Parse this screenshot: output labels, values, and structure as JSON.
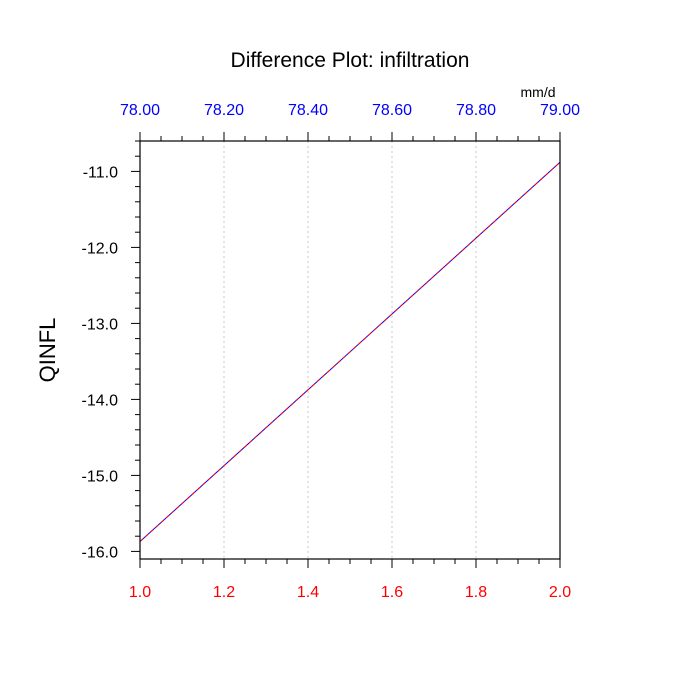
{
  "chart_data": {
    "type": "line",
    "title": "Difference Plot: infiltration",
    "ylabel": "QINFL",
    "top_axis_units": "mm/d",
    "xlim": [
      1.0,
      2.0
    ],
    "ylim": [
      -16.1,
      -10.6
    ],
    "top_xlim": [
      78.0,
      79.0
    ],
    "bottom_ticks": [
      "1.0",
      "1.2",
      "1.4",
      "1.6",
      "1.8",
      "2.0"
    ],
    "bottom_tick_values": [
      1.0,
      1.2,
      1.4,
      1.6,
      1.8,
      2.0
    ],
    "top_ticks": [
      "78.00",
      "78.20",
      "78.40",
      "78.60",
      "78.80",
      "79.00"
    ],
    "top_tick_values": [
      78.0,
      78.2,
      78.4,
      78.6,
      78.8,
      79.0
    ],
    "y_ticks": [
      "-11.0",
      "-12.0",
      "-13.0",
      "-14.0",
      "-15.0",
      "-16.0"
    ],
    "y_tick_values": [
      -11.0,
      -12.0,
      -13.0,
      -14.0,
      -15.0,
      -16.0
    ],
    "vertical_grid": true,
    "series": [
      {
        "x": [
          1.0,
          2.0
        ],
        "y": [
          -15.87,
          -10.88
        ],
        "color": "#0000ff"
      },
      {
        "x": [
          1.0,
          2.0
        ],
        "y": [
          -15.87,
          -10.88
        ],
        "color": "#ff0000",
        "dash": true
      }
    ],
    "bottom_tick_color": "#ff0000",
    "top_tick_color": "#0000ff"
  }
}
